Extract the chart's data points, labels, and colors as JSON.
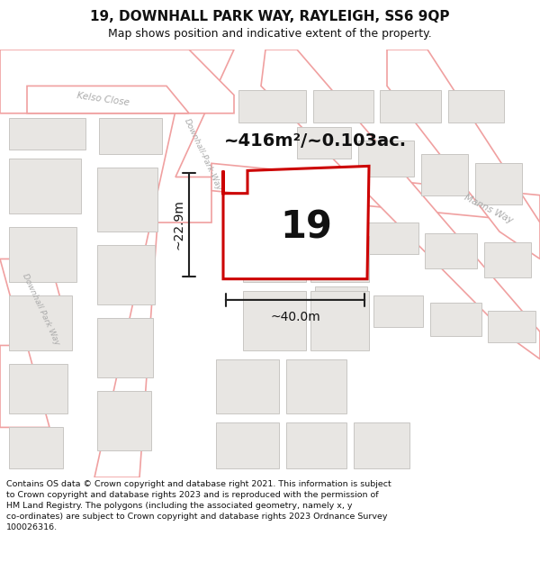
{
  "title": "19, DOWNHALL PARK WAY, RAYLEIGH, SS6 9QP",
  "subtitle": "Map shows position and indicative extent of the property.",
  "footnote": "Contains OS data © Crown copyright and database right 2021. This information is subject\nto Crown copyright and database rights 2023 and is reproduced with the permission of\nHM Land Registry. The polygons (including the associated geometry, namely x, y\nco-ordinates) are subject to Crown copyright and database rights 2023 Ordnance Survey\n100026316.",
  "area_label": "~416m²/~0.103ac.",
  "number_label": "19",
  "dim_horiz": "~40.0m",
  "dim_vert": "~22.9m",
  "bg_map_color": "#f5f3f0",
  "road_outline_color": "#f0a0a0",
  "building_fill_color": "#e8e6e3",
  "building_edge_color": "#c8c6c3",
  "plot_outline_color": "#cc0000",
  "dim_line_color": "#222222",
  "road_label_color": "#aaaaaa",
  "title_fontsize": 11,
  "subtitle_fontsize": 9,
  "footnote_fontsize": 6.8,
  "area_fontsize": 14,
  "number_fontsize": 30,
  "dim_fontsize": 10
}
